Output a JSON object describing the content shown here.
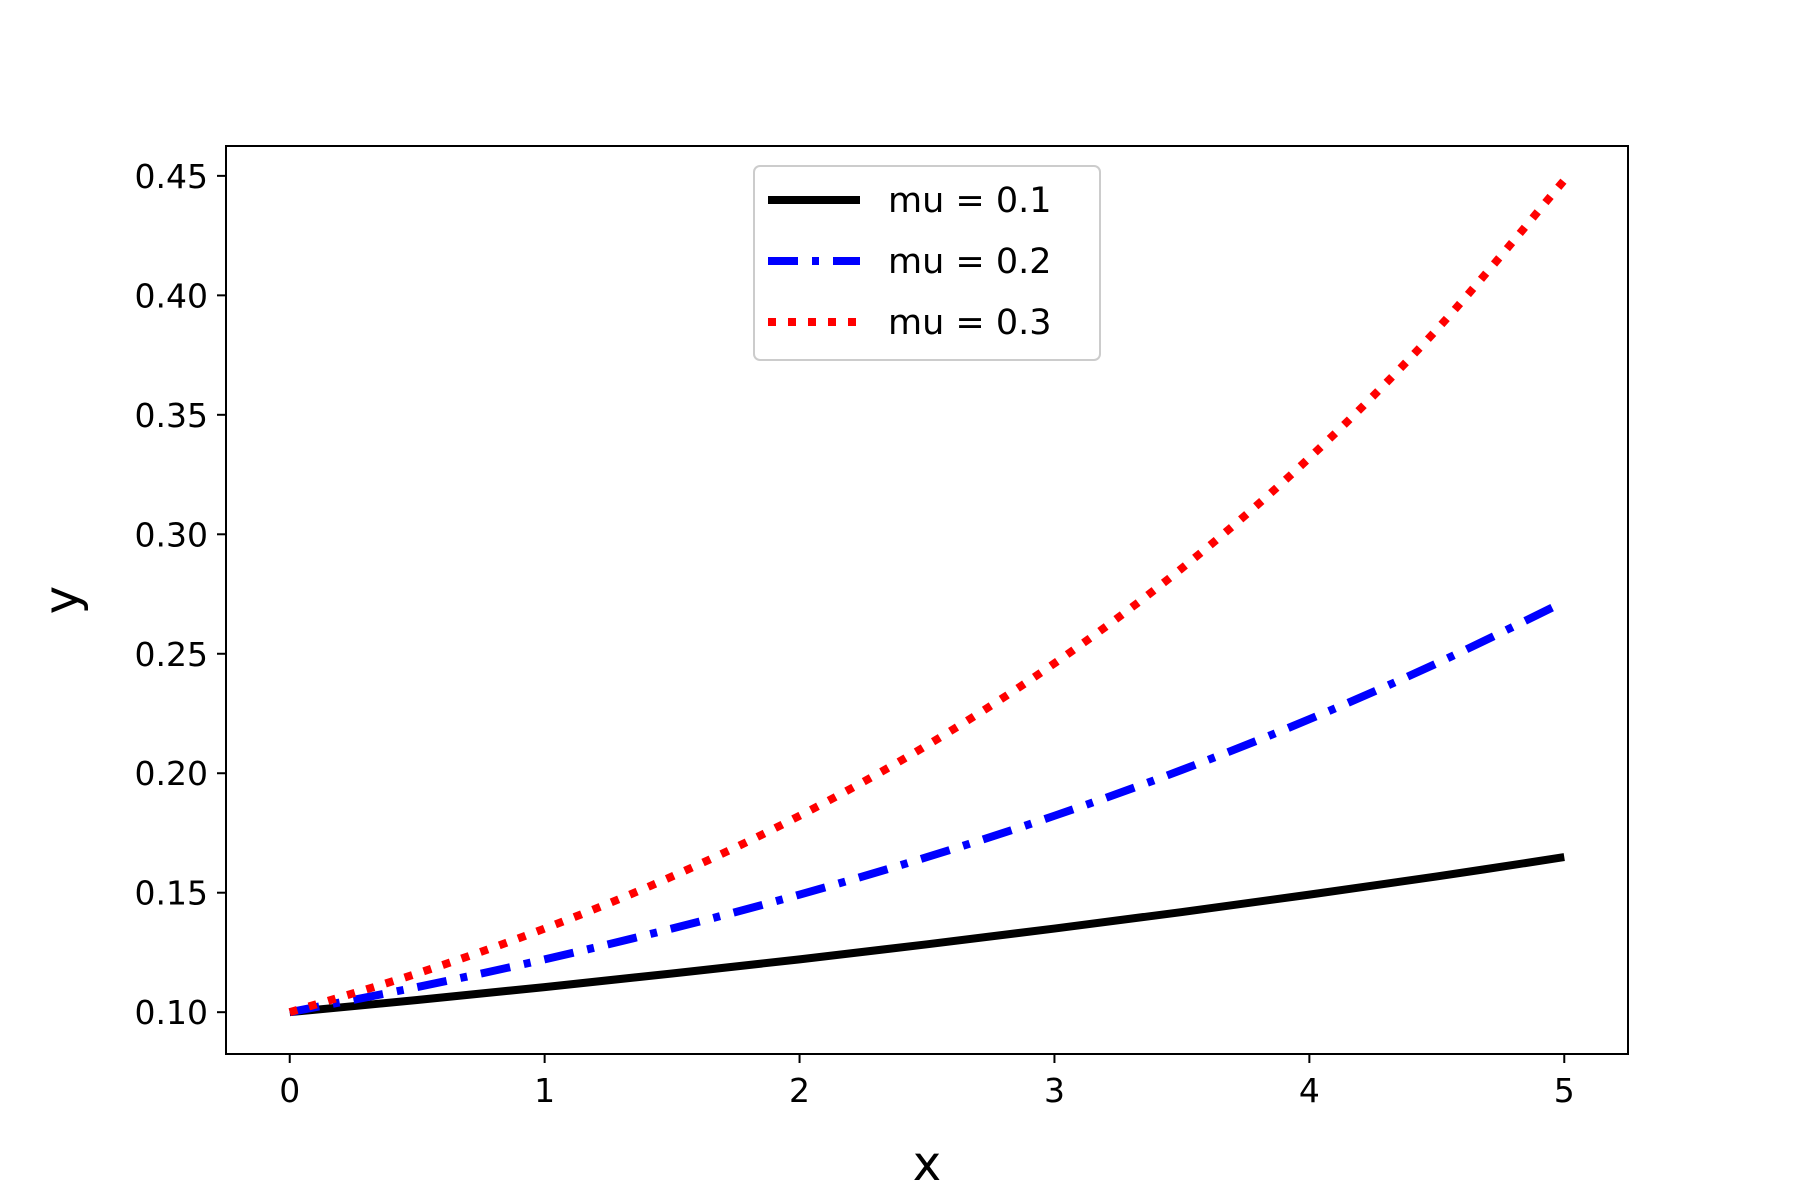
{
  "chart_data": {
    "type": "line",
    "title": "",
    "xlabel": "x",
    "ylabel": "y",
    "xlim": [
      -0.25,
      5.25
    ],
    "ylim": [
      0.0825,
      0.4625
    ],
    "xticks": [
      0,
      1,
      2,
      3,
      4,
      5
    ],
    "xtick_labels": [
      "0",
      "1",
      "2",
      "3",
      "4",
      "5"
    ],
    "yticks": [
      0.1,
      0.15,
      0.2,
      0.25,
      0.3,
      0.35,
      0.4,
      0.45
    ],
    "ytick_labels": [
      "0.10",
      "0.15",
      "0.20",
      "0.25",
      "0.30",
      "0.35",
      "0.40",
      "0.45"
    ],
    "grid": false,
    "legend": "upper center",
    "x": [
      0,
      0.5,
      1,
      1.5,
      2,
      2.5,
      3,
      3.5,
      4,
      4.5,
      5
    ],
    "series": [
      {
        "name": "mu = 0.1",
        "color": "#000000",
        "style": "solid",
        "values": [
          0.1,
          0.1051,
          0.1105,
          0.1162,
          0.1221,
          0.1284,
          0.135,
          0.1419,
          0.1492,
          0.1568,
          0.1649
        ]
      },
      {
        "name": "mu = 0.2",
        "color": "#0000ff",
        "style": "dashdot",
        "values": [
          0.1,
          0.1105,
          0.1221,
          0.135,
          0.1492,
          0.1649,
          0.1822,
          0.2014,
          0.2226,
          0.246,
          0.2718
        ]
      },
      {
        "name": "mu = 0.3",
        "color": "#ff0000",
        "style": "dotted",
        "values": [
          0.1,
          0.1162,
          0.135,
          0.1568,
          0.1822,
          0.2117,
          0.246,
          0.2858,
          0.332,
          0.3857,
          0.4482
        ]
      }
    ]
  }
}
